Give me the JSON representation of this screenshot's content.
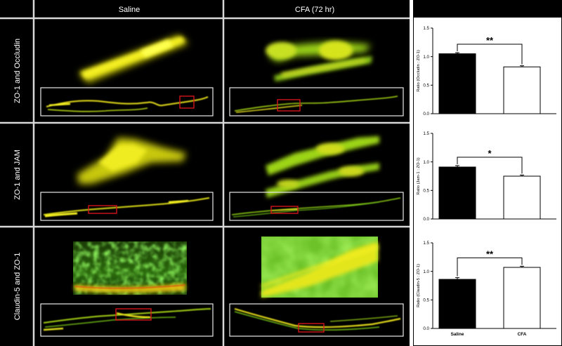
{
  "columns": [
    "Saline",
    "CFA (72 hr)"
  ],
  "rows": [
    "ZO-1 and Occludin",
    "ZO-1 and JAM",
    "Claudin-5 and ZO-1"
  ],
  "colors": {
    "background": "#000000",
    "divider": "#d8d8d8",
    "fluor_yellow": "#f2ee1c",
    "fluor_green": "#5cd420",
    "roi_red": "#e0161b",
    "bar_saline": "#000000",
    "bar_cfa": "#ffffff"
  },
  "chart_data": [
    {
      "type": "bar",
      "categories": [
        "Saline",
        "CFA"
      ],
      "values": [
        1.05,
        0.82
      ],
      "errors": [
        0.02,
        0.02
      ],
      "bar_colors": [
        "#000000",
        "#ffffff"
      ],
      "xlabel": "",
      "ylabel": "Ratio (Occludin : ZO-1)",
      "ylim": [
        0,
        1.5
      ],
      "yticks": [
        0.0,
        0.5,
        1.0,
        1.5
      ],
      "ytick_labels": [
        "0.0",
        "0.5",
        "1.0",
        "1.5"
      ],
      "show_category_labels": false,
      "significance": "**"
    },
    {
      "type": "bar",
      "categories": [
        "Saline",
        "CFA"
      ],
      "values": [
        0.91,
        0.75
      ],
      "errors": [
        0.025,
        0.02
      ],
      "bar_colors": [
        "#000000",
        "#ffffff"
      ],
      "xlabel": "",
      "ylabel": "Ratio (Jam-1 : ZO-1)",
      "ylim": [
        0,
        1.5
      ],
      "yticks": [
        0.0,
        0.5,
        1.0,
        1.5
      ],
      "ytick_labels": [
        "0.0",
        "0.5",
        "1.0",
        "1.5"
      ],
      "show_category_labels": false,
      "significance": "*"
    },
    {
      "type": "bar",
      "categories": [
        "Saline",
        "CFA"
      ],
      "values": [
        0.86,
        1.07
      ],
      "errors": [
        0.03,
        0.02
      ],
      "bar_colors": [
        "#000000",
        "#ffffff"
      ],
      "xlabel": "",
      "ylabel": "Ratio (Claudin-5 : ZO-1)",
      "ylim": [
        0,
        1.5
      ],
      "yticks": [
        0.0,
        0.5,
        1.0,
        1.5
      ],
      "ytick_labels": [
        "0.0",
        "0.5",
        "1.0",
        "1.5"
      ],
      "show_category_labels": true,
      "significance": "**"
    }
  ]
}
